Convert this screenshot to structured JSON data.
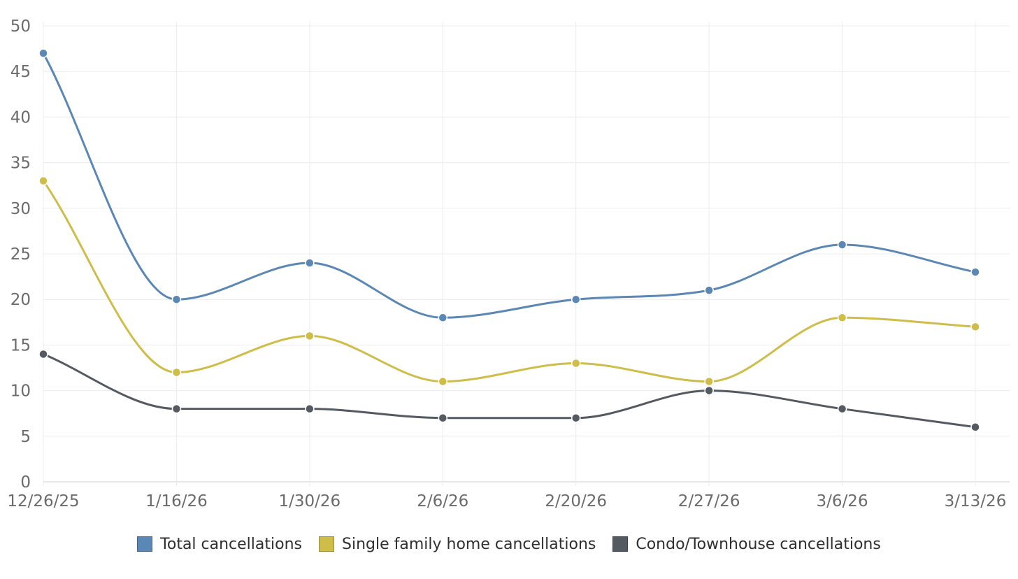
{
  "chart_data": {
    "type": "line",
    "categories": [
      "12/26/25",
      "1/16/26",
      "1/30/26",
      "2/6/26",
      "2/20/26",
      "2/27/26",
      "3/6/26",
      "3/13/26"
    ],
    "series": [
      {
        "name": "Total cancellations",
        "values": [
          47,
          20,
          24,
          18,
          20,
          21,
          26,
          23
        ],
        "color": "#5b87b5"
      },
      {
        "name": "Single family home cancellations",
        "values": [
          33,
          12,
          16,
          11,
          13,
          11,
          18,
          17
        ],
        "color": "#cfbd4a"
      },
      {
        "name": "Condo/Townhouse cancellations",
        "values": [
          14,
          8,
          8,
          7,
          7,
          10,
          8,
          6
        ],
        "color": "#535a61"
      }
    ],
    "ylim": [
      0,
      50
    ],
    "yticks": [
      0,
      5,
      10,
      15,
      20,
      25,
      30,
      35,
      40,
      45,
      50
    ],
    "grid": true,
    "legend": "bottom-center",
    "curve": "smooth"
  }
}
